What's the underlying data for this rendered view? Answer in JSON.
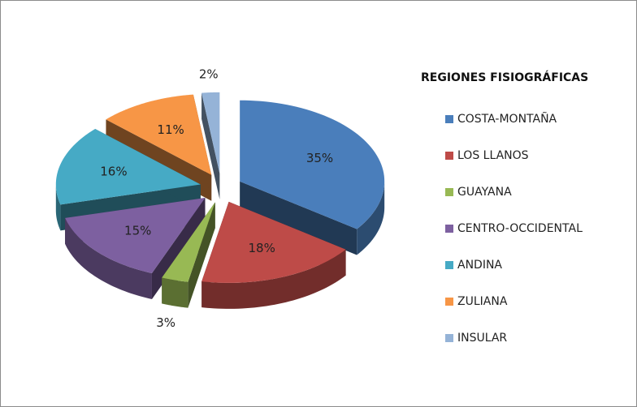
{
  "chart_data": {
    "type": "pie",
    "legend_title": "REGIONES FISIOGRÁFICAS",
    "categories": [
      "COSTA-MONTAÑA",
      "LOS LLANOS",
      "GUAYANA",
      "CENTRO-OCCIDENTAL",
      "ANDINA",
      "ZULIANA",
      "INSULAR"
    ],
    "values": [
      35,
      18,
      3,
      15,
      16,
      11,
      2
    ],
    "value_labels": [
      "35%",
      "18%",
      "3%",
      "15%",
      "16%",
      "11%",
      "2%"
    ],
    "colors": [
      "#4a7ebb",
      "#be4b48",
      "#98b954",
      "#7d60a0",
      "#46aac5",
      "#f79646",
      "#95b3d7"
    ],
    "legend": "right"
  }
}
